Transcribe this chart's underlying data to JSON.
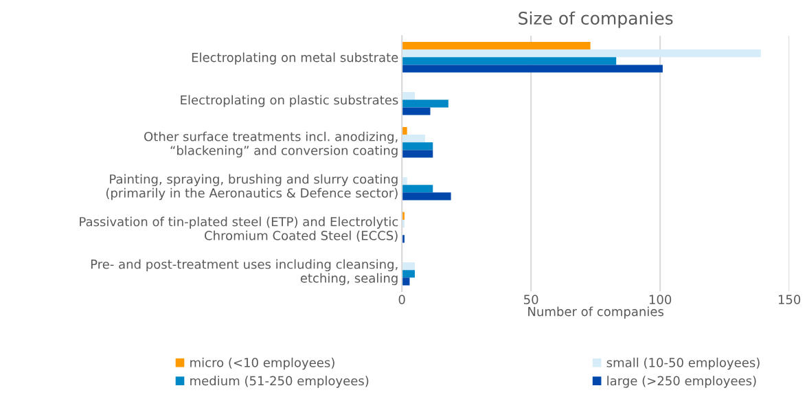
{
  "chart_data": {
    "type": "bar",
    "orientation": "horizontal",
    "title": "Size of companies",
    "xlabel": "Number of companies",
    "categories": [
      "Electroplating on metal substrate",
      "Electroplating on plastic substrates",
      "Other surface treatments incl. anodizing,\n“blackening” and conversion coating",
      "Painting, spraying, brushing and slurry coating\n(primarily in the Aeronautics & Defence sector)",
      "Passivation of tin-plated steel (ETP) and Electrolytic\nChromium Coated Steel (ECCS)",
      "Pre- and post-treatment uses including cleansing,\netching, sealing"
    ],
    "series": [
      {
        "name": "micro (<10 employees)",
        "color": "#ff9900",
        "values": [
          73,
          0,
          2,
          0,
          1,
          0
        ]
      },
      {
        "name": "small (10-50 employees)",
        "color": "#d6ecf8",
        "values": [
          139,
          5,
          9,
          2,
          1,
          5
        ]
      },
      {
        "name": "medium (51-250 employees)",
        "color": "#0088c6",
        "values": [
          83,
          18,
          12,
          12,
          0,
          5
        ]
      },
      {
        "name": "large (>250 employees)",
        "color": "#0047ab",
        "values": [
          101,
          11,
          12,
          19,
          1,
          3
        ]
      }
    ],
    "xlim": [
      0,
      150
    ],
    "xticks": [
      0,
      50,
      100,
      150
    ],
    "grid": "x",
    "legend": "bottom"
  }
}
